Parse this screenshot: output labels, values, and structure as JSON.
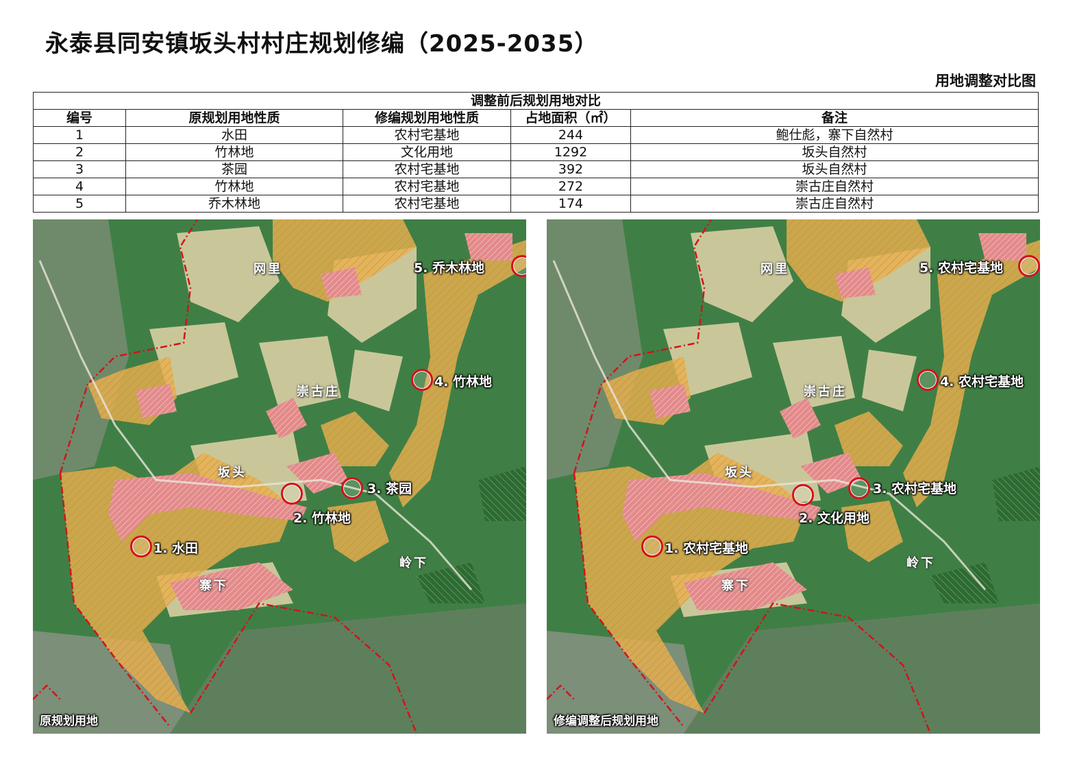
{
  "title": "永泰县同安镇坂头村村庄规划修编（2025-2035）",
  "subtitle": "用地调整对比图",
  "table": {
    "caption": "调整前后规划用地对比",
    "headers": [
      "编号",
      "原规划用地性质",
      "修编规划用地性质",
      "占地面积（㎡）",
      "备注"
    ],
    "rows": [
      [
        "1",
        "水田",
        "农村宅基地",
        "244",
        "鲍仕彪，寨下自然村"
      ],
      [
        "2",
        "竹林地",
        "文化用地",
        "1292",
        "坂头自然村"
      ],
      [
        "3",
        "茶园",
        "农村宅基地",
        "392",
        "坂头自然村"
      ],
      [
        "4",
        "竹林地",
        "农村宅基地",
        "272",
        "崇古庄自然村"
      ],
      [
        "5",
        "乔木林地",
        "农村宅基地",
        "174",
        "崇古庄自然村"
      ]
    ]
  },
  "places": [
    "网里",
    "崇古庄",
    "坂头",
    "寨下",
    "岭下"
  ],
  "maps": {
    "left": {
      "caption": "原规划用地",
      "markers": [
        "1. 水田",
        "2. 竹林地",
        "3. 茶园",
        "4. 竹林地",
        "5. 乔木林地"
      ]
    },
    "right": {
      "caption": "修编调整后规划用地",
      "markers": [
        "1. 农村宅基地",
        "2. 文化用地",
        "3. 农村宅基地",
        "4. 农村宅基地",
        "5. 农村宅基地"
      ]
    }
  },
  "colors": {
    "forest": "#3f7f45",
    "village_land": "#e9b04e",
    "homestead": "#e38a8a",
    "boundary": "#d3121b",
    "farmland": "#c9c79a"
  }
}
